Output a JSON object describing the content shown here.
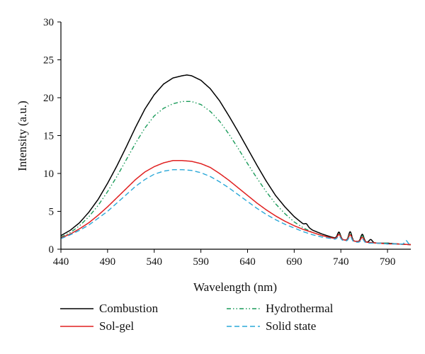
{
  "chart_data": {
    "type": "line",
    "xlabel": "Wavelength (nm)",
    "ylabel": "Intensity (a.u.)",
    "xlim": [
      440,
      815
    ],
    "ylim": [
      0,
      30
    ],
    "x_ticks": [
      440,
      490,
      540,
      590,
      640,
      690,
      740,
      790
    ],
    "y_ticks": [
      0,
      5,
      10,
      15,
      20,
      25,
      30
    ],
    "grid": false,
    "legend_position": "bottom",
    "series": [
      {
        "name": "Combustion",
        "color": "#000000",
        "dash": "solid",
        "x": [
          440,
          450,
          460,
          470,
          480,
          490,
          500,
          510,
          520,
          530,
          540,
          550,
          560,
          570,
          575,
          580,
          590,
          600,
          610,
          620,
          630,
          640,
          650,
          660,
          670,
          680,
          690,
          700,
          710,
          720,
          730,
          740,
          750,
          760,
          770,
          780,
          790,
          800,
          815
        ],
        "y": [
          1.8,
          2.5,
          3.5,
          4.9,
          6.6,
          8.7,
          11.0,
          13.5,
          16.1,
          18.5,
          20.4,
          21.8,
          22.6,
          22.9,
          23.0,
          22.9,
          22.3,
          21.2,
          19.6,
          17.6,
          15.5,
          13.3,
          11.1,
          9.0,
          7.1,
          5.6,
          4.3,
          3.3,
          2.5,
          2.0,
          1.6,
          1.3,
          1.1,
          1.0,
          0.9,
          0.8,
          0.8,
          0.7,
          0.6
        ]
      },
      {
        "name": "Hydrothermal",
        "color": "#1a9b5a",
        "dash": "dash-dot-dot",
        "x": [
          440,
          450,
          460,
          470,
          480,
          490,
          500,
          510,
          520,
          530,
          540,
          550,
          560,
          570,
          580,
          590,
          600,
          610,
          620,
          630,
          640,
          650,
          660,
          670,
          680,
          690,
          700,
          710,
          720,
          730,
          740,
          750,
          760,
          770,
          780,
          790,
          800,
          815
        ],
        "y": [
          1.6,
          2.2,
          3.1,
          4.3,
          5.8,
          7.6,
          9.6,
          11.8,
          14.0,
          16.0,
          17.6,
          18.6,
          19.2,
          19.5,
          19.5,
          19.1,
          18.2,
          16.9,
          15.2,
          13.3,
          11.3,
          9.4,
          7.6,
          6.0,
          4.7,
          3.6,
          2.8,
          2.2,
          1.8,
          1.5,
          1.3,
          1.1,
          1.0,
          0.9,
          0.8,
          0.8,
          0.7,
          0.6
        ]
      },
      {
        "name": "Sol-gel",
        "color": "#e02020",
        "dash": "solid",
        "x": [
          440,
          450,
          460,
          470,
          480,
          490,
          500,
          510,
          520,
          530,
          540,
          550,
          560,
          570,
          580,
          590,
          600,
          610,
          620,
          630,
          640,
          650,
          660,
          670,
          680,
          690,
          700,
          710,
          720,
          730,
          740,
          750,
          760,
          770,
          780,
          790,
          800,
          815
        ],
        "y": [
          1.5,
          2.0,
          2.7,
          3.5,
          4.5,
          5.6,
          6.8,
          8.0,
          9.2,
          10.2,
          10.9,
          11.4,
          11.7,
          11.7,
          11.6,
          11.3,
          10.8,
          10.0,
          9.1,
          8.1,
          7.1,
          6.1,
          5.2,
          4.4,
          3.7,
          3.1,
          2.6,
          2.2,
          1.8,
          1.5,
          1.3,
          1.1,
          1.0,
          0.9,
          0.8,
          0.7,
          0.7,
          0.6
        ]
      },
      {
        "name": "Solid state",
        "color": "#2aa8d8",
        "dash": "dashed",
        "x": [
          440,
          450,
          460,
          470,
          480,
          490,
          500,
          510,
          520,
          530,
          540,
          550,
          560,
          570,
          580,
          590,
          600,
          610,
          620,
          630,
          640,
          650,
          660,
          670,
          680,
          690,
          700,
          710,
          720,
          730,
          740,
          750,
          760,
          770,
          780,
          790,
          800,
          815
        ],
        "y": [
          1.4,
          1.9,
          2.5,
          3.2,
          4.1,
          5.0,
          6.1,
          7.2,
          8.3,
          9.2,
          9.9,
          10.3,
          10.5,
          10.5,
          10.4,
          10.1,
          9.6,
          8.9,
          8.1,
          7.2,
          6.3,
          5.4,
          4.6,
          3.9,
          3.3,
          2.8,
          2.3,
          1.9,
          1.6,
          1.4,
          1.2,
          1.0,
          0.9,
          0.8,
          0.8,
          0.7,
          0.7,
          0.6
        ]
      }
    ],
    "peaks": [
      {
        "series": "Combustion",
        "x": 738,
        "height": 0.9
      },
      {
        "series": "Combustion",
        "x": 750,
        "height": 1.2
      },
      {
        "series": "Combustion",
        "x": 763,
        "height": 1.0
      },
      {
        "series": "Combustion",
        "x": 772,
        "height": 0.4
      },
      {
        "series": "Combustion",
        "x": 703,
        "height": 0.3
      },
      {
        "series": "Hydrothermal",
        "x": 738,
        "height": 0.7
      },
      {
        "series": "Hydrothermal",
        "x": 750,
        "height": 1.0
      },
      {
        "series": "Hydrothermal",
        "x": 763,
        "height": 0.8
      },
      {
        "series": "Sol-gel",
        "x": 738,
        "height": 0.6
      },
      {
        "series": "Sol-gel",
        "x": 750,
        "height": 0.8
      },
      {
        "series": "Sol-gel",
        "x": 763,
        "height": 0.6
      },
      {
        "series": "Solid state",
        "x": 738,
        "height": 0.5
      },
      {
        "series": "Solid state",
        "x": 750,
        "height": 0.7
      },
      {
        "series": "Solid state",
        "x": 763,
        "height": 0.5
      },
      {
        "series": "Solid state",
        "x": 810,
        "height": 0.5
      }
    ]
  }
}
